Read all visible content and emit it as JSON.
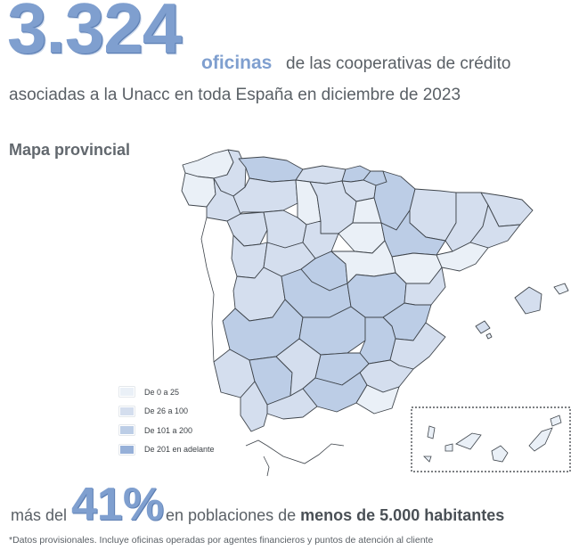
{
  "headline": {
    "number": "3.324",
    "unit_word": "oficinas",
    "rest_line_1": "de las cooperativas de crédito",
    "line_2": "asociadas a la Unacc en toda España en diciembre de 2023"
  },
  "map_section": {
    "title": "Mapa provincial",
    "colors": {
      "de_0_a_25": "#eaf0f7",
      "de_26_a_100": "#d4deee",
      "de_101_a_200": "#bccde6",
      "de_201_en_adelante": "#96b0d8",
      "border": "#3f454c"
    }
  },
  "legend": [
    {
      "label": "De 0 a 25",
      "color": "#eaf0f7"
    },
    {
      "label": "De 26 a 100",
      "color": "#d4deee"
    },
    {
      "label": "De 101 a 200",
      "color": "#bccde6"
    },
    {
      "label": "De 201 en adelante",
      "color": "#96b0d8"
    }
  ],
  "footer": {
    "prefix": "más del",
    "percent": "41%",
    "middle": "en poblaciones de",
    "bold": "menos de 5.000 habitantes",
    "note": "*Datos provisionales. Incluye oficinas operadas por agentes financieros y puntos de atención al cliente"
  }
}
